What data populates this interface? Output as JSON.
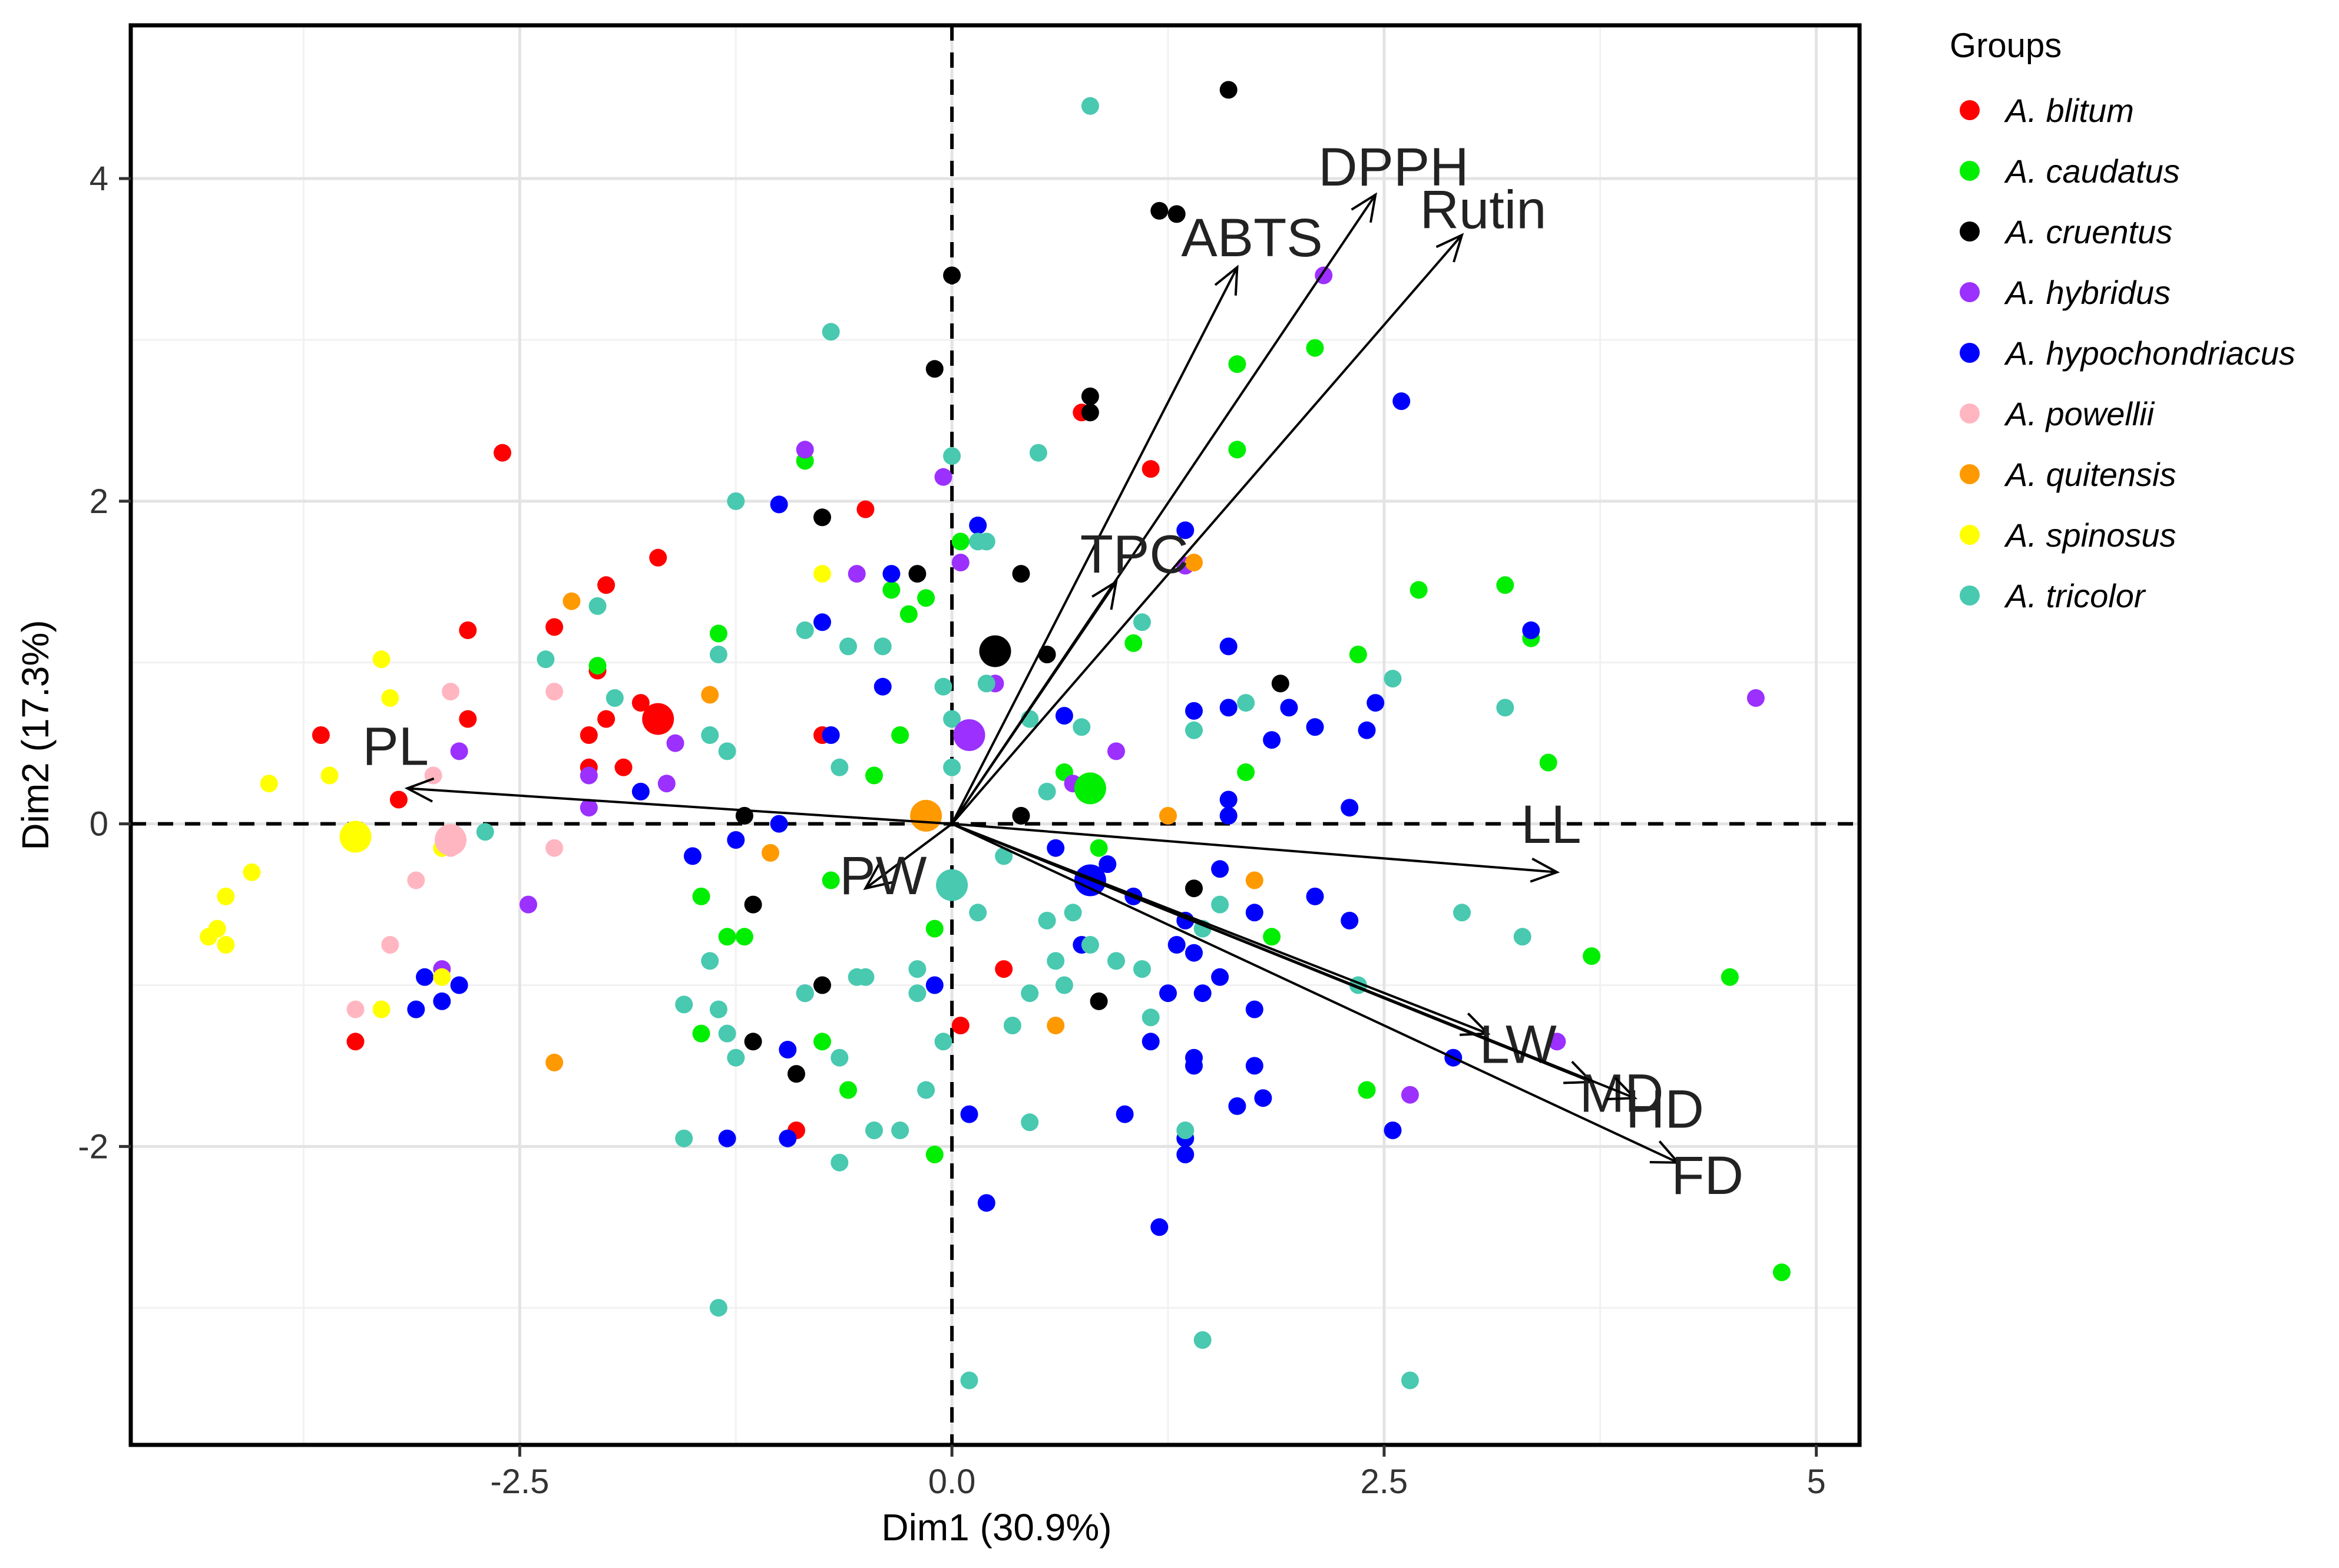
{
  "chart_data": {
    "type": "scatter",
    "subtype": "pca-biplot",
    "xlabel": "Dim1 (30.9%)",
    "ylabel": "Dim2 (17.3%)",
    "xlim": [
      -4.75,
      5.25
    ],
    "ylim": [
      -3.85,
      4.95
    ],
    "xticks": [
      -2.5,
      0.0,
      2.5,
      5
    ],
    "xtick_labels": [
      "-2.5",
      "0.0",
      "2.5",
      "5"
    ],
    "yticks": [
      -2,
      0,
      2,
      4
    ],
    "ytick_labels": [
      "-2",
      "0",
      "2",
      "4"
    ],
    "grid": true,
    "reference_lines": {
      "x": 0,
      "y": 0,
      "style": "dashed"
    },
    "legend": {
      "title": "Groups",
      "position": "right",
      "entries": [
        {
          "label": "A. blitum",
          "color": "#ff0000"
        },
        {
          "label": "A. caudatus",
          "color": "#00ee00"
        },
        {
          "label": "A. cruentus",
          "color": "#000000"
        },
        {
          "label": "A. hybridus",
          "color": "#9b30ff"
        },
        {
          "label": "A. hypochondriacus",
          "color": "#0000ff"
        },
        {
          "label": "A. powellii",
          "color": "#ffb6c1"
        },
        {
          "label": "A. quitensis",
          "color": "#ff9900"
        },
        {
          "label": "A. spinosus",
          "color": "#ffff00"
        },
        {
          "label": "A. tricolor",
          "color": "#48c9b0"
        }
      ]
    },
    "variables": [
      {
        "name": "DPPH",
        "x": 2.45,
        "y": 3.9
      },
      {
        "name": "Rutin",
        "x": 2.95,
        "y": 3.65
      },
      {
        "name": "ABTS",
        "x": 1.65,
        "y": 3.45
      },
      {
        "name": "TPC",
        "x": 0.95,
        "y": 1.5
      },
      {
        "name": "PL",
        "x": -3.15,
        "y": 0.22
      },
      {
        "name": "PW",
        "x": -0.5,
        "y": -0.4
      },
      {
        "name": "LL",
        "x": 3.5,
        "y": -0.3
      },
      {
        "name": "LW",
        "x": 3.1,
        "y": -1.3
      },
      {
        "name": "MD",
        "x": 3.7,
        "y": -1.6
      },
      {
        "name": "HD",
        "x": 3.95,
        "y": -1.7
      },
      {
        "name": "FD",
        "x": 4.2,
        "y": -2.1
      }
    ],
    "centroids": [
      {
        "group": "A. blitum",
        "x": -1.7,
        "y": 0.65
      },
      {
        "group": "A. caudatus",
        "x": 0.8,
        "y": 0.22
      },
      {
        "group": "A. cruentus",
        "x": 0.25,
        "y": 1.07
      },
      {
        "group": "A. hybridus",
        "x": 0.1,
        "y": 0.55
      },
      {
        "group": "A. hypochondriacus",
        "x": 0.8,
        "y": -0.35
      },
      {
        "group": "A. powellii",
        "x": -2.9,
        "y": -0.1
      },
      {
        "group": "A. quitensis",
        "x": -0.15,
        "y": 0.05
      },
      {
        "group": "A. spinosus",
        "x": -3.45,
        "y": -0.08
      },
      {
        "group": "A. tricolor",
        "x": 0.0,
        "y": -0.38
      }
    ],
    "series": [
      {
        "name": "A. blitum",
        "points": [
          [
            -2.6,
            2.3
          ],
          [
            -1.7,
            1.65
          ],
          [
            -2.0,
            1.48
          ],
          [
            -2.3,
            1.22
          ],
          [
            -2.8,
            1.2
          ],
          [
            -2.05,
            0.95
          ],
          [
            -1.8,
            0.75
          ],
          [
            -2.0,
            0.65
          ],
          [
            -2.1,
            0.55
          ],
          [
            -1.9,
            0.35
          ],
          [
            -2.1,
            0.35
          ],
          [
            -2.8,
            0.65
          ],
          [
            -3.65,
            0.55
          ],
          [
            -3.2,
            0.15
          ],
          [
            -3.45,
            -1.35
          ],
          [
            -0.5,
            1.95
          ],
          [
            0.75,
            2.55
          ],
          [
            1.15,
            2.2
          ],
          [
            0.3,
            -0.9
          ],
          [
            0.05,
            -1.25
          ],
          [
            -0.9,
            -1.9
          ],
          [
            -0.75,
            0.55
          ]
        ]
      },
      {
        "name": "A. caudatus",
        "points": [
          [
            1.65,
            2.85
          ],
          [
            2.1,
            2.95
          ],
          [
            1.65,
            2.32
          ],
          [
            -0.85,
            2.25
          ],
          [
            0.05,
            1.75
          ],
          [
            -0.35,
            1.45
          ],
          [
            -0.15,
            1.4
          ],
          [
            -0.25,
            1.3
          ],
          [
            1.05,
            1.12
          ],
          [
            2.35,
            1.05
          ],
          [
            2.7,
            1.45
          ],
          [
            3.2,
            1.48
          ],
          [
            3.35,
            1.15
          ],
          [
            3.45,
            0.38
          ],
          [
            2.1,
            0.6
          ],
          [
            1.7,
            0.32
          ],
          [
            0.65,
            0.32
          ],
          [
            -1.35,
            1.18
          ],
          [
            -0.3,
            0.55
          ],
          [
            -0.45,
            0.3
          ],
          [
            -0.7,
            -0.35
          ],
          [
            -1.45,
            -0.45
          ],
          [
            -1.3,
            -0.7
          ],
          [
            -1.2,
            -0.7
          ],
          [
            -0.1,
            -0.65
          ],
          [
            -1.45,
            -1.3
          ],
          [
            -0.75,
            -1.35
          ],
          [
            -0.6,
            -1.65
          ],
          [
            -0.1,
            -2.05
          ],
          [
            1.85,
            -0.7
          ],
          [
            2.4,
            -1.65
          ],
          [
            3.7,
            -0.82
          ],
          [
            4.5,
            -0.95
          ],
          [
            4.8,
            -2.78
          ],
          [
            -2.05,
            0.98
          ],
          [
            0.85,
            -0.15
          ]
        ]
      },
      {
        "name": "A. cruentus",
        "points": [
          [
            1.6,
            4.55
          ],
          [
            1.2,
            3.8
          ],
          [
            1.3,
            3.78
          ],
          [
            -0.0,
            3.4
          ],
          [
            -0.1,
            2.82
          ],
          [
            0.8,
            2.65
          ],
          [
            0.8,
            2.55
          ],
          [
            -0.75,
            1.9
          ],
          [
            -0.2,
            1.55
          ],
          [
            0.4,
            1.55
          ],
          [
            0.55,
            1.05
          ],
          [
            1.9,
            0.87
          ],
          [
            0.4,
            0.05
          ],
          [
            -1.2,
            0.05
          ],
          [
            -1.15,
            -0.5
          ],
          [
            1.4,
            -0.4
          ],
          [
            -0.75,
            -1.0
          ],
          [
            0.85,
            -1.1
          ],
          [
            -1.15,
            -1.35
          ],
          [
            -0.9,
            -1.55
          ]
        ]
      },
      {
        "name": "A. hybridus",
        "points": [
          [
            -0.85,
            2.32
          ],
          [
            -0.05,
            2.15
          ],
          [
            2.15,
            3.4
          ],
          [
            1.35,
            1.6
          ],
          [
            -0.55,
            1.55
          ],
          [
            0.05,
            1.62
          ],
          [
            0.25,
            0.87
          ],
          [
            -1.6,
            0.5
          ],
          [
            -2.85,
            0.45
          ],
          [
            -2.1,
            0.3
          ],
          [
            -2.1,
            0.1
          ],
          [
            -1.65,
            0.25
          ],
          [
            -2.45,
            -0.5
          ],
          [
            -2.95,
            -0.9
          ],
          [
            0.95,
            0.45
          ],
          [
            0.7,
            0.25
          ],
          [
            4.65,
            0.78
          ],
          [
            2.65,
            -1.68
          ],
          [
            3.5,
            -1.35
          ]
        ]
      },
      {
        "name": "A. hypochondriacus",
        "points": [
          [
            -1.0,
            1.98
          ],
          [
            0.15,
            1.85
          ],
          [
            1.35,
            1.82
          ],
          [
            -0.35,
            1.55
          ],
          [
            -0.75,
            1.25
          ],
          [
            -0.4,
            0.85
          ],
          [
            2.6,
            2.62
          ],
          [
            3.35,
            1.2
          ],
          [
            1.6,
            1.1
          ],
          [
            1.4,
            0.7
          ],
          [
            1.6,
            0.72
          ],
          [
            1.95,
            0.72
          ],
          [
            2.1,
            0.6
          ],
          [
            2.45,
            0.75
          ],
          [
            2.4,
            0.58
          ],
          [
            1.85,
            0.52
          ],
          [
            2.3,
            0.1
          ],
          [
            1.6,
            0.15
          ],
          [
            1.6,
            0.05
          ],
          [
            0.65,
            0.67
          ],
          [
            -0.7,
            0.55
          ],
          [
            -1.8,
            0.2
          ],
          [
            -1.5,
            -0.2
          ],
          [
            -1.25,
            -0.1
          ],
          [
            -1.0,
            0.0
          ],
          [
            0.8,
            -0.35
          ],
          [
            0.9,
            -0.25
          ],
          [
            1.05,
            -0.45
          ],
          [
            1.35,
            -0.6
          ],
          [
            1.55,
            -0.28
          ],
          [
            1.75,
            -0.55
          ],
          [
            2.1,
            -0.45
          ],
          [
            2.3,
            -0.6
          ],
          [
            1.55,
            -0.95
          ],
          [
            1.3,
            -0.75
          ],
          [
            1.4,
            -0.8
          ],
          [
            1.25,
            -1.05
          ],
          [
            1.45,
            -1.05
          ],
          [
            1.75,
            -1.15
          ],
          [
            1.15,
            -1.35
          ],
          [
            1.4,
            -1.45
          ],
          [
            1.4,
            -1.5
          ],
          [
            1.75,
            -1.5
          ],
          [
            1.65,
            -1.75
          ],
          [
            1.8,
            -1.7
          ],
          [
            1.0,
            -1.8
          ],
          [
            1.35,
            -1.95
          ],
          [
            1.35,
            -2.05
          ],
          [
            2.55,
            -1.9
          ],
          [
            1.2,
            -2.5
          ],
          [
            0.2,
            -2.35
          ],
          [
            -0.1,
            -1.0
          ],
          [
            -0.85,
            -1.05
          ],
          [
            -0.95,
            -1.4
          ],
          [
            -1.3,
            -1.95
          ],
          [
            -0.95,
            -1.95
          ],
          [
            0.1,
            -1.8
          ],
          [
            2.9,
            -1.45
          ],
          [
            0.75,
            -0.75
          ],
          [
            0.6,
            -0.15
          ],
          [
            -3.05,
            -0.95
          ],
          [
            -2.95,
            -1.1
          ],
          [
            -2.85,
            -1.0
          ],
          [
            -3.1,
            -1.15
          ]
        ]
      },
      {
        "name": "A. powellii",
        "points": [
          [
            -2.9,
            0.82
          ],
          [
            -2.3,
            0.82
          ],
          [
            -3.0,
            0.3
          ],
          [
            -2.9,
            -0.15
          ],
          [
            -2.3,
            -0.15
          ],
          [
            -3.1,
            -0.35
          ],
          [
            -3.25,
            -0.75
          ],
          [
            -3.45,
            -1.15
          ]
        ]
      },
      {
        "name": "A. quitensis",
        "points": [
          [
            -2.2,
            1.38
          ],
          [
            -1.4,
            0.8
          ],
          [
            1.4,
            1.62
          ],
          [
            -1.05,
            -0.18
          ],
          [
            1.25,
            0.05
          ],
          [
            1.75,
            -0.35
          ],
          [
            0.6,
            -1.25
          ],
          [
            -2.3,
            -1.48
          ]
        ]
      },
      {
        "name": "A. spinosus",
        "points": [
          [
            -0.75,
            1.55
          ],
          [
            -3.3,
            1.02
          ],
          [
            -3.25,
            0.78
          ],
          [
            -3.6,
            0.3
          ],
          [
            -3.95,
            0.25
          ],
          [
            -4.05,
            -0.3
          ],
          [
            -4.2,
            -0.45
          ],
          [
            -4.3,
            -0.7
          ],
          [
            -4.25,
            -0.65
          ],
          [
            -4.2,
            -0.75
          ],
          [
            -3.3,
            -1.15
          ],
          [
            -2.95,
            -0.95
          ],
          [
            -2.95,
            -0.15
          ]
        ]
      },
      {
        "name": "A. tricolor",
        "points": [
          [
            0.8,
            4.45
          ],
          [
            -0.7,
            3.05
          ],
          [
            0.5,
            2.3
          ],
          [
            0.0,
            2.28
          ],
          [
            -1.25,
            2.0
          ],
          [
            0.15,
            1.75
          ],
          [
            0.2,
            1.75
          ],
          [
            1.1,
            1.25
          ],
          [
            -2.05,
            1.35
          ],
          [
            -1.35,
            1.05
          ],
          [
            -0.85,
            1.2
          ],
          [
            -0.6,
            1.1
          ],
          [
            -0.4,
            1.1
          ],
          [
            -2.35,
            1.02
          ],
          [
            -0.05,
            0.85
          ],
          [
            0.2,
            0.87
          ],
          [
            -1.95,
            0.78
          ],
          [
            0.45,
            0.65
          ],
          [
            0.75,
            0.6
          ],
          [
            1.7,
            0.75
          ],
          [
            2.55,
            0.9
          ],
          [
            3.2,
            0.72
          ],
          [
            1.4,
            0.58
          ],
          [
            0.0,
            0.65
          ],
          [
            0.0,
            0.35
          ],
          [
            -0.65,
            0.35
          ],
          [
            -1.4,
            0.55
          ],
          [
            -1.3,
            0.45
          ],
          [
            -2.7,
            -0.05
          ],
          [
            -1.4,
            -0.85
          ],
          [
            -0.85,
            -1.05
          ],
          [
            -0.55,
            -0.95
          ],
          [
            -1.3,
            -1.3
          ],
          [
            -1.25,
            -1.45
          ],
          [
            -1.35,
            -1.15
          ],
          [
            -1.55,
            -1.12
          ],
          [
            -1.55,
            -1.95
          ],
          [
            -0.65,
            -1.45
          ],
          [
            -0.45,
            -1.9
          ],
          [
            -0.3,
            -1.9
          ],
          [
            -0.15,
            -1.65
          ],
          [
            -0.05,
            -1.35
          ],
          [
            -0.2,
            -0.9
          ],
          [
            0.15,
            -0.55
          ],
          [
            0.3,
            -0.2
          ],
          [
            0.6,
            -0.85
          ],
          [
            0.45,
            -1.05
          ],
          [
            0.35,
            -1.25
          ],
          [
            0.55,
            -0.6
          ],
          [
            0.7,
            -0.55
          ],
          [
            0.95,
            -0.85
          ],
          [
            1.1,
            -0.9
          ],
          [
            1.15,
            -1.2
          ],
          [
            1.45,
            -0.65
          ],
          [
            1.55,
            -0.5
          ],
          [
            1.35,
            -1.9
          ],
          [
            1.45,
            -3.2
          ],
          [
            0.1,
            -3.45
          ],
          [
            -1.35,
            -3.0
          ],
          [
            0.45,
            -1.85
          ],
          [
            0.65,
            -1.0
          ],
          [
            0.8,
            -0.75
          ],
          [
            2.35,
            -1.0
          ],
          [
            2.95,
            -0.55
          ],
          [
            3.3,
            -0.7
          ],
          [
            2.65,
            -3.45
          ],
          [
            -0.5,
            -0.95
          ],
          [
            -0.65,
            -2.1
          ],
          [
            -0.2,
            -1.05
          ],
          [
            0.55,
            0.2
          ]
        ]
      }
    ]
  }
}
